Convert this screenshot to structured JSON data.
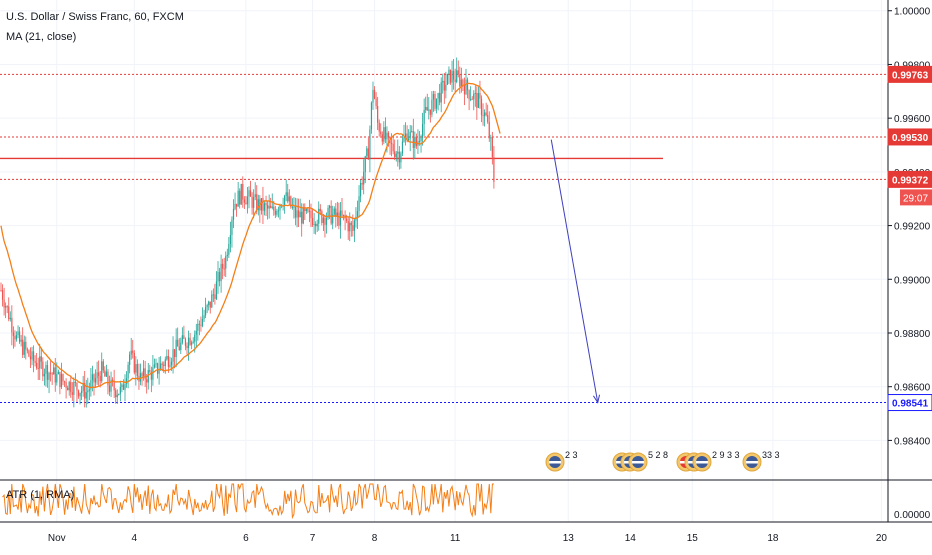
{
  "header": {
    "symbol_title": "U.S. Dollar / Swiss Franc, 60, FXCM",
    "ma_label": "MA (21, close)",
    "atr_label": "ATR (1, RMA)"
  },
  "colors": {
    "candle_up": "#26a69a",
    "candle_down": "#ef5350",
    "ma_line": "#f57f17",
    "atr_line": "#f57f17",
    "red_level": "#e53935",
    "blue_level": "#1a1aff",
    "arrow": "#3f3fbf",
    "grid": "#f0f3fa"
  },
  "price_axis": {
    "ticks": [
      "1.00000",
      "0.99800",
      "0.99600",
      "0.99400",
      "0.99200",
      "0.99000",
      "0.98800",
      "0.98600",
      "0.98400"
    ],
    "tick_values": [
      1.0,
      0.998,
      0.996,
      0.994,
      0.992,
      0.99,
      0.988,
      0.986,
      0.984
    ],
    "labels": [
      {
        "value": 0.99763,
        "text": "0.99763",
        "color": "#e53935"
      },
      {
        "value": 0.9953,
        "text": "0.99530",
        "color": "#e53935"
      },
      {
        "value": 0.99372,
        "text": "0.99372",
        "color": "#e53935"
      },
      {
        "value": 0.98541,
        "text": "0.98541",
        "color": "#1a1aff"
      }
    ],
    "countdown": "29:07"
  },
  "atr_axis": {
    "tick": "0.00000"
  },
  "time_axis": {
    "labels": [
      "Nov",
      "4",
      "6",
      "7",
      "8",
      "11",
      "13",
      "14",
      "15",
      "18",
      "20"
    ]
  },
  "event_markers": [
    {
      "flags": "us",
      "count": "2 3"
    },
    {
      "flags": "us-us-us",
      "count": "5 2 8"
    },
    {
      "flags": "ch-us-us",
      "count": "2 9 3 3"
    },
    {
      "flags": "us",
      "count": "33 3"
    }
  ],
  "chart_data": {
    "type": "candlestick",
    "title": "U.S. Dollar / Swiss Franc, 60, FXCM",
    "indicators": [
      "MA (21, close)",
      "ATR (1, RMA)"
    ],
    "ylim": [
      0.9826,
      1.0004
    ],
    "horizontal_levels": [
      {
        "value": 0.99763,
        "style": "dotted",
        "color": "#e53935"
      },
      {
        "value": 0.9953,
        "style": "dotted",
        "color": "#e53935"
      },
      {
        "value": 0.9945,
        "style": "solid",
        "color": "#e53935"
      },
      {
        "value": 0.99372,
        "style": "dotted",
        "color": "#e53935"
      },
      {
        "value": 0.98541,
        "style": "dotted",
        "color": "#1a1aff"
      }
    ],
    "price_path": [
      {
        "t": 0,
        "p": 0.9896
      },
      {
        "t": 10,
        "p": 0.9878
      },
      {
        "t": 20,
        "p": 0.987
      },
      {
        "t": 30,
        "p": 0.9866
      },
      {
        "t": 40,
        "p": 0.9862
      },
      {
        "t": 55,
        "p": 0.9858
      },
      {
        "t": 65,
        "p": 0.9866
      },
      {
        "t": 70,
        "p": 0.986
      },
      {
        "t": 78,
        "p": 0.9858
      },
      {
        "t": 83,
        "p": 0.9872
      },
      {
        "t": 90,
        "p": 0.9863
      },
      {
        "t": 100,
        "p": 0.9866
      },
      {
        "t": 113,
        "p": 0.9874
      },
      {
        "t": 125,
        "p": 0.988
      },
      {
        "t": 135,
        "p": 0.9891
      },
      {
        "t": 145,
        "p": 0.9908
      },
      {
        "t": 150,
        "p": 0.9928
      },
      {
        "t": 155,
        "p": 0.9932
      },
      {
        "t": 165,
        "p": 0.9928
      },
      {
        "t": 175,
        "p": 0.9925
      },
      {
        "t": 183,
        "p": 0.9931
      },
      {
        "t": 190,
        "p": 0.9924
      },
      {
        "t": 200,
        "p": 0.9923
      },
      {
        "t": 212,
        "p": 0.9924
      },
      {
        "t": 222,
        "p": 0.9922
      },
      {
        "t": 227,
        "p": 0.9918
      },
      {
        "t": 232,
        "p": 0.9935
      },
      {
        "t": 237,
        "p": 0.9948
      },
      {
        "t": 240,
        "p": 0.9972
      },
      {
        "t": 243,
        "p": 0.9958
      },
      {
        "t": 250,
        "p": 0.995
      },
      {
        "t": 257,
        "p": 0.9947
      },
      {
        "t": 262,
        "p": 0.9955
      },
      {
        "t": 268,
        "p": 0.995
      },
      {
        "t": 274,
        "p": 0.9962
      },
      {
        "t": 282,
        "p": 0.9968
      },
      {
        "t": 290,
        "p": 0.9976
      },
      {
        "t": 297,
        "p": 0.9974
      },
      {
        "t": 303,
        "p": 0.9969
      },
      {
        "t": 308,
        "p": 0.9966
      },
      {
        "t": 313,
        "p": 0.996
      },
      {
        "t": 316,
        "p": 0.995
      },
      {
        "t": 318,
        "p": 0.99372
      }
    ],
    "atr_ylim": [
      0,
      0.0006
    ],
    "annotations": [
      {
        "type": "arrow",
        "from": {
          "t": 355,
          "p": 0.9952
        },
        "to": {
          "t": 385,
          "p": 0.98541
        }
      }
    ],
    "x_labels": [
      "Nov",
      "4",
      "6",
      "7",
      "8",
      "11",
      "13",
      "14",
      "15",
      "18",
      "20"
    ],
    "x_label_positions_t": [
      36,
      86,
      158,
      201,
      241,
      293,
      366,
      406,
      446,
      498,
      568
    ]
  }
}
